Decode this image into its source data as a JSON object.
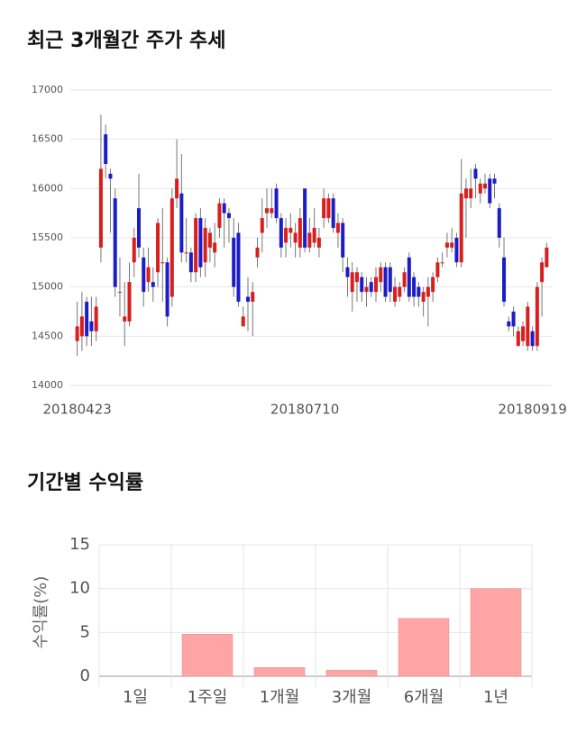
{
  "chart_data": [
    {
      "type": "candlestick",
      "title": "최근 3개월간 주가 추세",
      "categories": [
        "20180423",
        null,
        null,
        null,
        null,
        null,
        null,
        null,
        null,
        null,
        null,
        null,
        null,
        null,
        null,
        null,
        null,
        null,
        null,
        null,
        null,
        null,
        null,
        null,
        null,
        null,
        null,
        null,
        null,
        null,
        null,
        null,
        null,
        null,
        null,
        null,
        null,
        null,
        null,
        null,
        null,
        null,
        null,
        null,
        null,
        null,
        null,
        null,
        "20180710",
        null,
        null,
        null,
        null,
        null,
        null,
        null,
        null,
        null,
        null,
        null,
        null,
        null,
        null,
        null,
        null,
        null,
        null,
        null,
        null,
        null,
        null,
        null,
        null,
        null,
        null,
        null,
        null,
        null,
        null,
        null,
        null,
        null,
        null,
        null,
        null,
        null,
        null,
        null,
        null,
        null,
        null,
        null,
        null,
        null,
        null,
        null,
        "20180919",
        null,
        null,
        null
      ],
      "open": [
        14450,
        14500,
        14850,
        14650,
        14550,
        15400,
        16550,
        16150,
        15900,
        14950,
        14650,
        14650,
        15250,
        15800,
        15300,
        15050,
        15050,
        15150,
        15250,
        15250,
        14900,
        15900,
        15950,
        15350,
        15350,
        15150,
        15700,
        15250,
        15400,
        15350,
        15600,
        15850,
        15750,
        15500,
        15550,
        14600,
        14900,
        14850,
        15300,
        15550,
        15750,
        15750,
        16000,
        15700,
        15450,
        15550,
        15450,
        15400,
        16000,
        15400,
        15450,
        15400,
        15700,
        15700,
        15900,
        15550,
        15650,
        15200,
        14950,
        15050,
        15100,
        14950,
        15050,
        14950,
        15050,
        15200,
        15200,
        14850,
        14900,
        15000,
        15300,
        15100,
        15000,
        14850,
        14900,
        14950,
        15100,
        15250,
        15400,
        15400,
        15500,
        15250,
        15900,
        15900,
        16200,
        15950,
        16000,
        16100,
        16100,
        15800,
        15300,
        14650,
        14750,
        14400,
        14450,
        14400,
        14550,
        14400,
        15050,
        15200
      ],
      "high": [
        14850,
        14950,
        14900,
        14900,
        14900,
        16750,
        16650,
        16200,
        16000,
        15300,
        15050,
        15250,
        15600,
        16150,
        15400,
        15400,
        15200,
        15700,
        15800,
        15300,
        16000,
        16500,
        16350,
        15700,
        15400,
        15750,
        15800,
        15700,
        15600,
        15650,
        15900,
        15900,
        15800,
        15700,
        15650,
        14800,
        15100,
        15050,
        15500,
        15900,
        16000,
        16000,
        16050,
        15750,
        15700,
        15750,
        15650,
        15800,
        16000,
        15700,
        15800,
        15600,
        16000,
        15950,
        15950,
        15750,
        15700,
        15300,
        15250,
        15200,
        15150,
        15100,
        15100,
        15200,
        15250,
        15250,
        15250,
        15100,
        15050,
        15200,
        15350,
        15150,
        15050,
        15000,
        15100,
        15150,
        15300,
        15350,
        15550,
        15600,
        15550,
        16300,
        16100,
        16200,
        16250,
        16100,
        16150,
        16150,
        16150,
        15850,
        15500,
        14700,
        14800,
        14600,
        14650,
        14850,
        14600,
        15050,
        15300,
        15450
      ],
      "low": [
        14300,
        14350,
        14400,
        14400,
        14450,
        15250,
        16100,
        15550,
        14900,
        14700,
        14400,
        14600,
        15100,
        15300,
        14800,
        14950,
        14850,
        15000,
        14850,
        14600,
        14800,
        15800,
        15250,
        15250,
        15050,
        15050,
        15100,
        15100,
        15250,
        15200,
        15500,
        15400,
        15450,
        14900,
        14800,
        14600,
        14550,
        14500,
        15200,
        15350,
        15600,
        15700,
        15650,
        15300,
        15300,
        15400,
        15300,
        15300,
        15350,
        15350,
        15400,
        15300,
        15600,
        15650,
        15550,
        15400,
        15150,
        14900,
        14750,
        14850,
        14850,
        14800,
        14900,
        14850,
        14950,
        14850,
        14850,
        14800,
        14850,
        14950,
        14850,
        14800,
        14800,
        14700,
        14600,
        14850,
        15050,
        15200,
        15300,
        15350,
        15200,
        15200,
        15500,
        15800,
        15900,
        15850,
        15950,
        15800,
        15900,
        15400,
        14800,
        14550,
        14500,
        14400,
        14400,
        14350,
        14350,
        14350,
        14700,
        15200
      ],
      "close": [
        14600,
        14700,
        14500,
        14550,
        14800,
        16200,
        16250,
        16100,
        15000,
        14950,
        14700,
        15050,
        15500,
        15400,
        14950,
        15200,
        15000,
        15650,
        15250,
        14700,
        15900,
        16100,
        15350,
        15350,
        15150,
        15700,
        15200,
        15600,
        15550,
        15450,
        15850,
        15750,
        15700,
        15000,
        14850,
        14700,
        14850,
        14950,
        15400,
        15700,
        15800,
        15800,
        15700,
        15400,
        15600,
        15600,
        15550,
        15700,
        15400,
        15550,
        15600,
        15500,
        15900,
        15900,
        15600,
        15650,
        15300,
        15100,
        15150,
        15150,
        14950,
        15000,
        14950,
        15100,
        15200,
        14900,
        14950,
        15000,
        15000,
        15150,
        14900,
        14900,
        14900,
        14950,
        15000,
        15100,
        15250,
        15250,
        15450,
        15450,
        15250,
        15950,
        16000,
        16000,
        16100,
        16050,
        16050,
        15850,
        16050,
        15500,
        14850,
        14600,
        14600,
        14550,
        14600,
        14800,
        14400,
        15000,
        15250,
        15400
      ],
      "up_color": "#d91e1e",
      "down_color": "#1c1cc8",
      "ylim": [
        14000,
        17000
      ],
      "yticks": [
        14000,
        14500,
        15000,
        15500,
        16000,
        16500,
        17000
      ],
      "grid": true
    },
    {
      "type": "bar",
      "title": "기간별 수익률",
      "y_label": "수익률(%)",
      "categories": [
        "1일",
        "1주일",
        "1개월",
        "3개월",
        "6개월",
        "1년"
      ],
      "values": [
        0,
        4.8,
        1.0,
        0.7,
        6.6,
        10.0
      ],
      "color": "#ffa5a5",
      "ylim": [
        0,
        15
      ],
      "yticks": [
        0,
        5,
        10,
        15
      ],
      "grid": true
    }
  ]
}
